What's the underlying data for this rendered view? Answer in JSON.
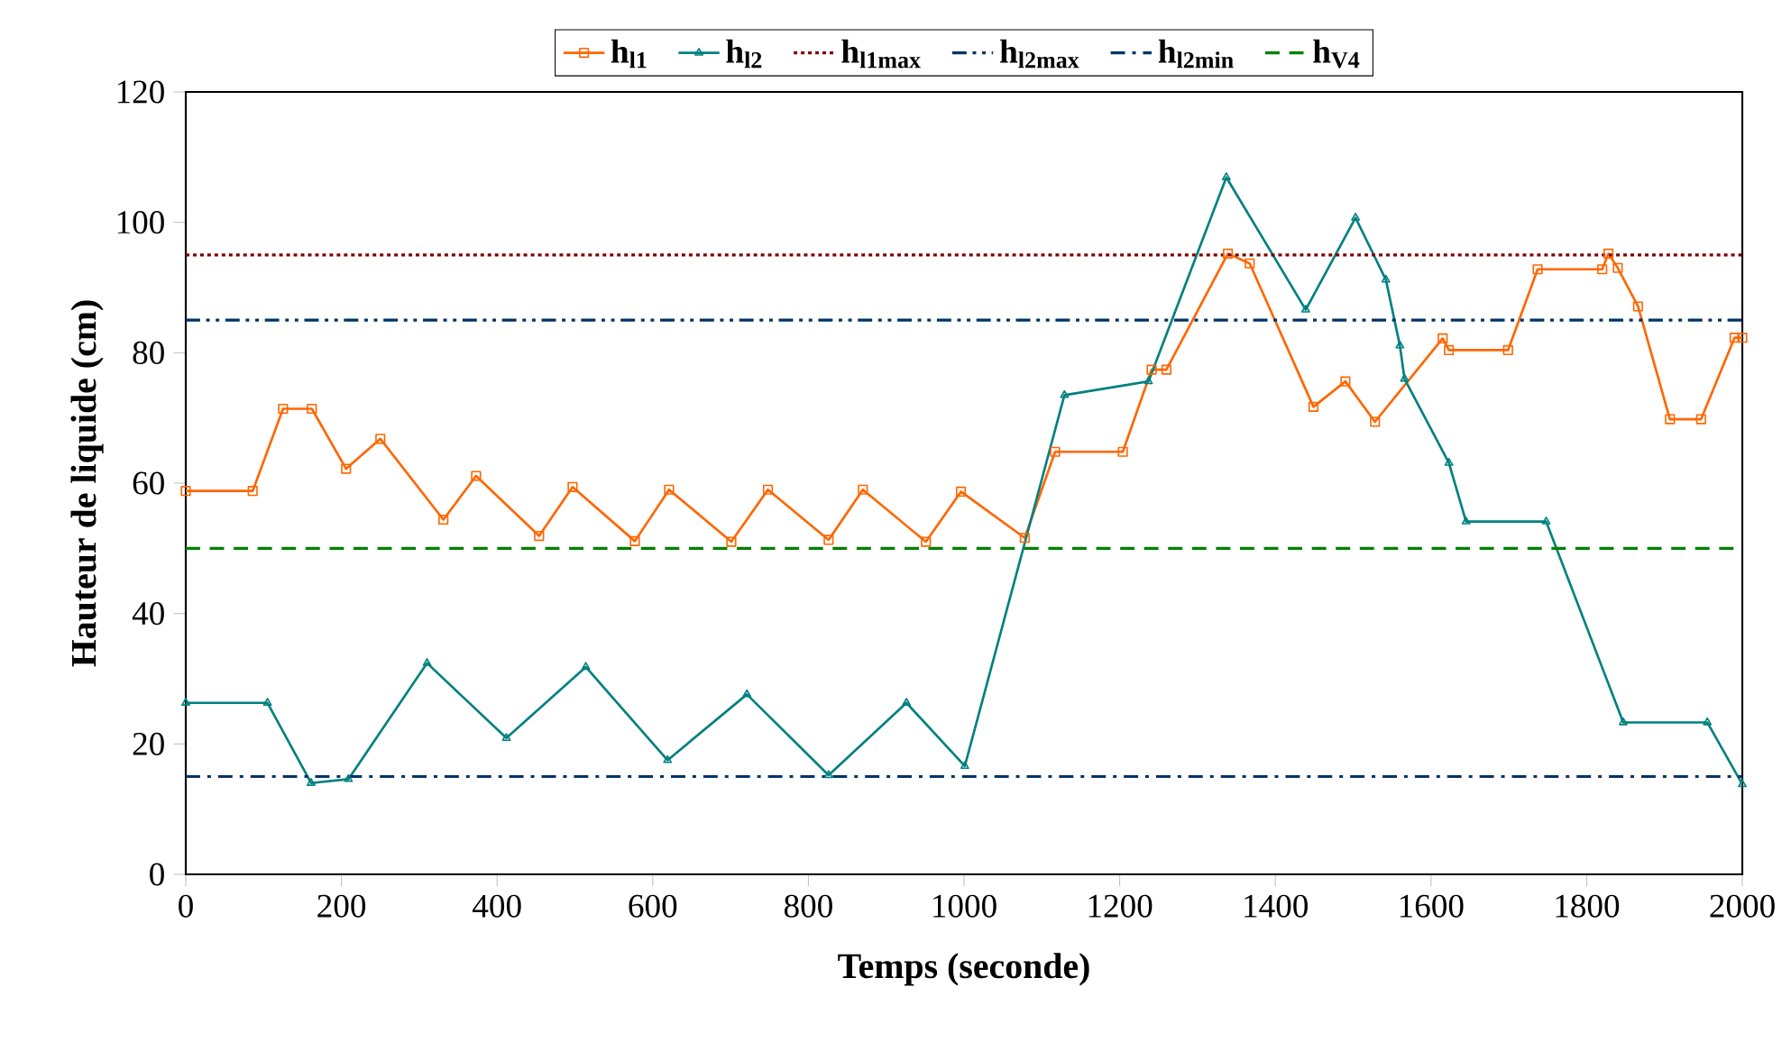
{
  "chart_data": {
    "type": "line",
    "xlabel": "Temps (seconde)",
    "ylabel": "Hauteur de liquide (cm)",
    "xlim": [
      0,
      2000
    ],
    "xticks": [
      0,
      200,
      400,
      600,
      800,
      1000,
      1200,
      1400,
      1600,
      1800,
      2000
    ],
    "ylim": [
      0,
      120
    ],
    "yticks": [
      0,
      20,
      40,
      60,
      80,
      100,
      120
    ],
    "grid": false,
    "legend": "top",
    "series": [
      {
        "name": "h$_{l1}$",
        "color": "#ff6600",
        "marker": "square",
        "line_style": "solid",
        "x": [
          0,
          86,
          125,
          162,
          206,
          250,
          331,
          373,
          454,
          497,
          577,
          621,
          701,
          748,
          826,
          870,
          951,
          996,
          1078,
          1117,
          1204,
          1241,
          1260,
          1339,
          1367,
          1449,
          1490,
          1528,
          1615,
          1623,
          1699,
          1737,
          1820,
          1828,
          1840,
          1866,
          1907,
          1947,
          1990,
          2000
        ],
        "values": [
          58.8,
          58.8,
          71.4,
          71.4,
          62.2,
          66.8,
          54.4,
          61.1,
          51.9,
          59.4,
          51.1,
          59,
          51,
          59,
          51.3,
          59,
          51,
          58.7,
          51.6,
          64.8,
          64.8,
          77.4,
          77.4,
          95.2,
          93.7,
          71.7,
          75.6,
          69.4,
          82.2,
          80.4,
          80.4,
          92.8,
          92.8,
          95.2,
          93,
          87.1,
          69.8,
          69.8,
          82.3,
          82.3
        ]
      },
      {
        "name": "h$_{l2}$",
        "color": "#008080",
        "marker": "triangle",
        "line_style": "solid",
        "x": [
          0,
          105,
          161,
          209,
          310,
          412,
          514,
          619,
          721,
          826,
          926,
          1001,
          1129,
          1237,
          1337,
          1439,
          1503,
          1542,
          1560,
          1566,
          1623,
          1645,
          1748,
          1847,
          1955,
          2000
        ],
        "values": [
          26.3,
          26.3,
          14,
          14.6,
          32.4,
          20.9,
          31.8,
          17.5,
          27.6,
          15.2,
          26.3,
          16.6,
          73.5,
          75.6,
          106.9,
          86.6,
          100.7,
          91.2,
          81.1,
          76,
          63.1,
          54.1,
          54.1,
          23.3,
          23.3,
          13.8
        ]
      },
      {
        "name": "h$_{l1max}$",
        "color": "#800000",
        "marker": "none",
        "line_style": "dotted",
        "x": [
          0,
          2000
        ],
        "values": [
          95,
          95
        ]
      },
      {
        "name": "h$_{l2max}$",
        "color": "#003366",
        "marker": "none",
        "line_style": "dashdotdot",
        "x": [
          0,
          2000
        ],
        "values": [
          85,
          85
        ]
      },
      {
        "name": "h$_{l2min}$",
        "color": "#003366",
        "marker": "none",
        "line_style": "dashdot",
        "x": [
          0,
          2000
        ],
        "values": [
          15,
          15
        ]
      },
      {
        "name": "h$_{V4}$",
        "color": "#008000",
        "marker": "none",
        "line_style": "dashed",
        "x": [
          0,
          2000
        ],
        "values": [
          50,
          50
        ]
      }
    ]
  }
}
